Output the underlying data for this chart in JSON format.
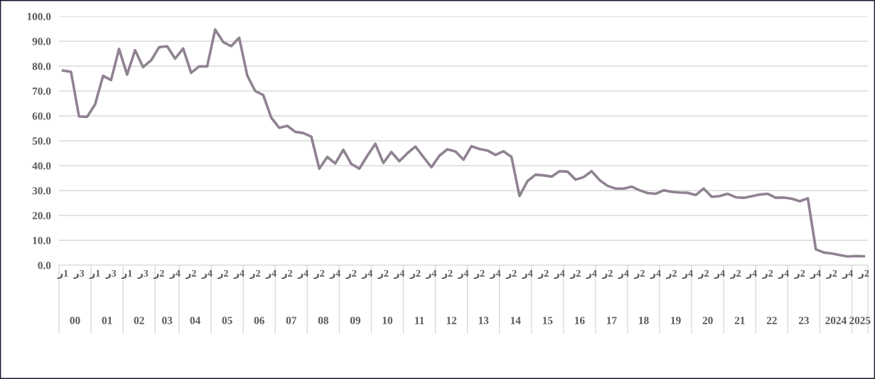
{
  "chart_data": {
    "type": "line",
    "categories": [
      "ر1",
      null,
      "ر3",
      null,
      "ر1",
      null,
      "ر3",
      null,
      "ر1",
      null,
      "ر3",
      null,
      "ر2",
      null,
      "ر4",
      null,
      "ر2",
      null,
      "ر4",
      null,
      "ر2",
      null,
      "ر4",
      null,
      "ر2",
      null,
      "ر4",
      null,
      "ر2",
      null,
      "ر4",
      null,
      "ر2",
      null,
      "ر4",
      null,
      "ر2",
      null,
      "ر4",
      null,
      "ر2",
      null,
      "ر4",
      null,
      "ر2",
      null,
      "ر4",
      null,
      "ر2",
      null,
      "ر4",
      null,
      "ر2",
      null,
      "ر4",
      null,
      "ر2",
      null,
      "ر4",
      null,
      "ر2",
      null,
      "ر4",
      null,
      "ر2",
      null,
      "ر4",
      null,
      "ر2",
      null,
      "ر4",
      null,
      "ر2",
      null,
      "ر4",
      null,
      "ر2",
      null,
      "ر4",
      null,
      "ر2",
      null,
      "ر4",
      null,
      "ر2",
      null,
      "ر4",
      null,
      "ر2",
      null,
      "ر4",
      null,
      "ر2",
      null,
      "ر4",
      null,
      "ر2",
      null,
      "ر4",
      null,
      "ر2"
    ],
    "annotations": [
      "00",
      "01",
      "02",
      "03",
      "04",
      "05",
      "06",
      "07",
      "08",
      "09",
      "10",
      "11",
      "12",
      "13",
      "14",
      "15",
      "16",
      "17",
      "18",
      "19",
      "20",
      "21",
      "22",
      "23",
      "2024",
      "2025"
    ],
    "series": [
      {
        "color": "#8f8291",
        "values": [
          78.2,
          77.7,
          59.8,
          59.6,
          64.6,
          76.1,
          74.4,
          86.9,
          76.6,
          86.4,
          79.6,
          82.3,
          87.6,
          88.0,
          83.0,
          87.1,
          77.3,
          79.9,
          79.9,
          94.7,
          89.7,
          88.0,
          91.4,
          76.3,
          70.0,
          68.4,
          59.3,
          55.2,
          56.0,
          53.6,
          53.1,
          51.7,
          38.8,
          43.5,
          40.9,
          46.4,
          40.7,
          38.8,
          44.0,
          48.8,
          41.1,
          45.5,
          41.8,
          45.0,
          47.7,
          43.5,
          39.4,
          44.0,
          46.6,
          45.7,
          42.4,
          47.8,
          46.7,
          46.1,
          44.3,
          45.8,
          43.5,
          27.8,
          33.8,
          36.4,
          36.1,
          35.6,
          37.8,
          37.6,
          34.4,
          35.4,
          37.8,
          34.2,
          31.9,
          30.8,
          30.8,
          31.6,
          30.1,
          29.0,
          28.7,
          30.1,
          29.5,
          29.2,
          29.1,
          28.2,
          30.8,
          27.5,
          27.8,
          28.7,
          27.3,
          27.1,
          27.7,
          28.4,
          28.7,
          27.1,
          27.2,
          26.7,
          25.7,
          26.9,
          6.4,
          5.1,
          4.7,
          4.1,
          3.5,
          3.7,
          3.6
        ]
      }
    ],
    "ylim": [
      0,
      100
    ],
    "yticks": [
      {
        "value": 0,
        "label": "0.0"
      },
      {
        "value": 10,
        "label": "10.0"
      },
      {
        "value": 20,
        "label": "20.0"
      },
      {
        "value": 30,
        "label": "30.0"
      },
      {
        "value": 40,
        "label": "40.0"
      },
      {
        "value": 50,
        "label": "50.0"
      },
      {
        "value": 60,
        "label": "60.0"
      },
      {
        "value": 70,
        "label": "70.0"
      },
      {
        "value": 80,
        "label": "80.0"
      },
      {
        "value": 90,
        "label": "90.0"
      },
      {
        "value": 100,
        "label": "100.0"
      }
    ],
    "grid": "y",
    "marker": "none",
    "line_style": "solid"
  }
}
